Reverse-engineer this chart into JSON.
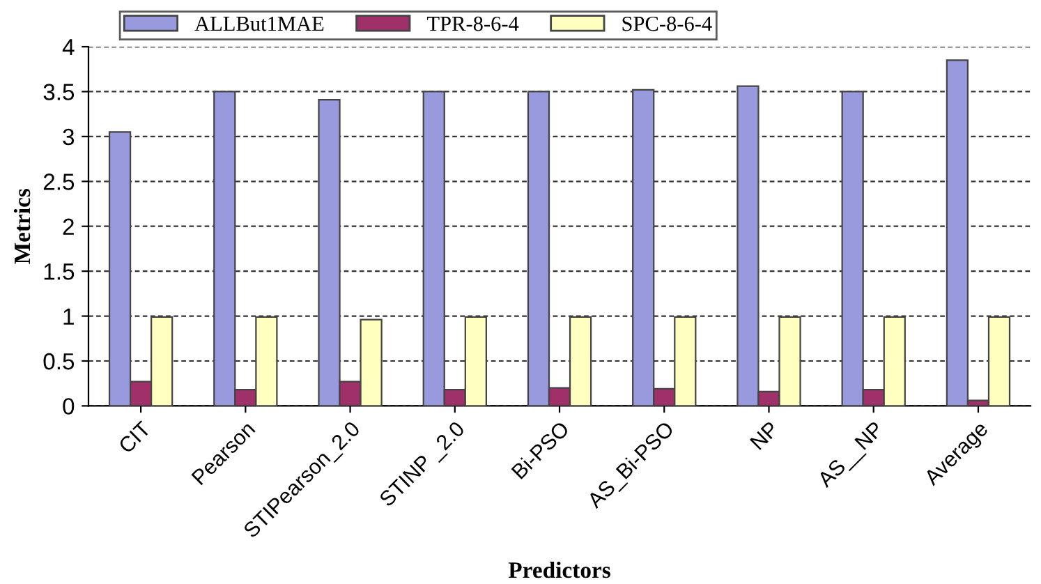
{
  "chart_data": {
    "type": "bar",
    "xlabel": "Predictors",
    "ylabel": "Metrics",
    "categories": [
      "CIT",
      "Pearson",
      "STIPearson_2.0",
      "STINP _2.0",
      "Bi-PSO",
      "AS_Bi-PSO",
      "NP",
      "AS__NP",
      "Average"
    ],
    "series": [
      {
        "name": "ALLBut1MAE",
        "color": "#9999dd",
        "values": [
          3.05,
          3.5,
          3.41,
          3.5,
          3.5,
          3.52,
          3.56,
          3.5,
          3.85
        ]
      },
      {
        "name": "TPR-8-6-4",
        "color": "#a0306a",
        "values": [
          0.27,
          0.18,
          0.27,
          0.18,
          0.2,
          0.19,
          0.16,
          0.18,
          0.06
        ]
      },
      {
        "name": "SPC-8-6-4",
        "color": "#ffffc0",
        "values": [
          0.99,
          0.99,
          0.96,
          0.99,
          0.99,
          0.99,
          0.99,
          0.99,
          0.99
        ]
      }
    ],
    "ylim": [
      0,
      4
    ],
    "yticks": [
      0,
      0.5,
      1,
      1.5,
      2,
      2.5,
      3,
      3.5,
      4
    ],
    "grid": "y",
    "legend": "top"
  }
}
